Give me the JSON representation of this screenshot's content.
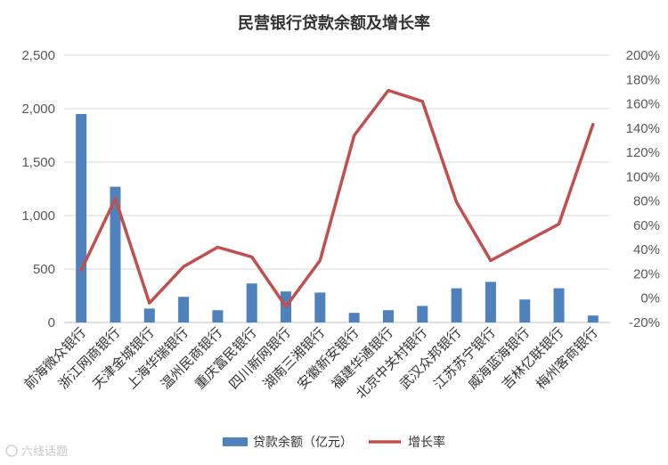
{
  "chart_data": {
    "type": "bar",
    "title": "民营银行贷款余额及增长率",
    "categories": [
      "前海微众银行",
      "浙江网商银行",
      "天津金城银行",
      "上海华瑞银行",
      "温州民商银行",
      "重庆富民银行",
      "四川新网银行",
      "湖南三湘银行",
      "安徽新安银行",
      "福建华通银行",
      "北京中关村银行",
      "武汉众邦银行",
      "江苏苏宁银行",
      "威海蓝海银行",
      "吉林亿联银行",
      "梅州客商银行"
    ],
    "series": [
      {
        "name": "贷款余额（亿元）",
        "type": "bar",
        "axis": "left",
        "color": "#4f81bd",
        "values": [
          1950,
          1270,
          130,
          240,
          115,
          365,
          290,
          280,
          90,
          115,
          155,
          320,
          380,
          215,
          320,
          65
        ]
      },
      {
        "name": "增长率",
        "type": "line",
        "axis": "right",
        "color": "#c0504d",
        "values": [
          0.23,
          0.82,
          -0.04,
          0.26,
          0.42,
          0.34,
          -0.07,
          0.31,
          1.34,
          1.71,
          1.62,
          0.79,
          0.31,
          0.46,
          0.61,
          1.43
        ]
      }
    ],
    "y_left": {
      "min": 0,
      "max": 2500,
      "ticks": [
        "0",
        "500",
        "1,000",
        "1,500",
        "2,000",
        "2,500"
      ]
    },
    "y_right": {
      "min": -0.2,
      "max": 2.0,
      "ticks": [
        "-20%",
        "0%",
        "20%",
        "40%",
        "60%",
        "80%",
        "100%",
        "120%",
        "140%",
        "160%",
        "180%",
        "200%"
      ]
    },
    "grid": true,
    "legend": "bottom"
  },
  "watermark": "六线话题"
}
